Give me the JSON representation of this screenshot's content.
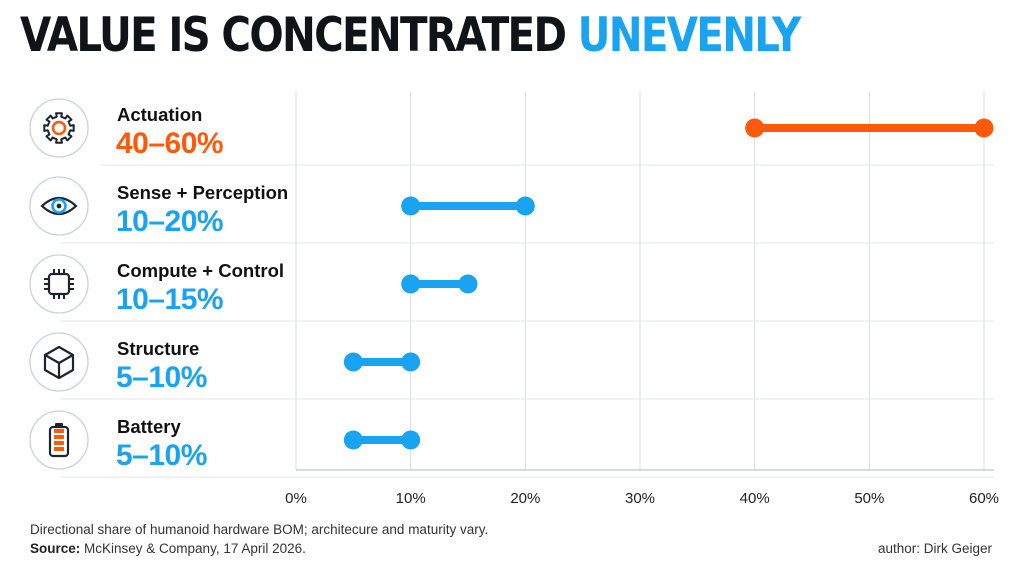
{
  "title": {
    "main": "VALUE IS CONCENTRATED",
    "accent": "UNEVENLY"
  },
  "colors": {
    "highlight": "#ff5a0a",
    "primary": "#1aa3f0",
    "text": "#101418",
    "grid": "#d9dde3"
  },
  "chart_data": {
    "type": "range-dot",
    "xlim": [
      0,
      60
    ],
    "x_ticks": [
      0,
      10,
      20,
      30,
      40,
      50,
      60
    ],
    "x_tick_labels": [
      "0%",
      "10%",
      "20%",
      "30%",
      "40%",
      "50%",
      "60%"
    ],
    "grid": true,
    "series": [
      {
        "name": "Actuation",
        "range_label": "40–60%",
        "low": 40,
        "high": 60,
        "color": "#ff5a0a",
        "icon": "gear-icon"
      },
      {
        "name": "Sense + Perception",
        "range_label": "10–20%",
        "low": 10,
        "high": 20,
        "color": "#1aa3f0",
        "icon": "eye-icon"
      },
      {
        "name": "Compute + Control",
        "range_label": "10–15%",
        "low": 10,
        "high": 15,
        "color": "#1aa3f0",
        "icon": "chip-icon"
      },
      {
        "name": "Structure",
        "range_label": "5–10%",
        "low": 5,
        "high": 10,
        "color": "#1aa3f0",
        "icon": "cube-icon"
      },
      {
        "name": "Battery",
        "range_label": "5–10%",
        "low": 5,
        "high": 10,
        "color": "#1aa3f0",
        "icon": "battery-icon"
      }
    ]
  },
  "footer": {
    "note": "Directional share of humanoid hardware BOM; architecure and maturity vary.",
    "source_label": "Source:",
    "source_text": " McKinsey & Company, 17 April 2026.",
    "author": "author: Dirk Geiger"
  }
}
